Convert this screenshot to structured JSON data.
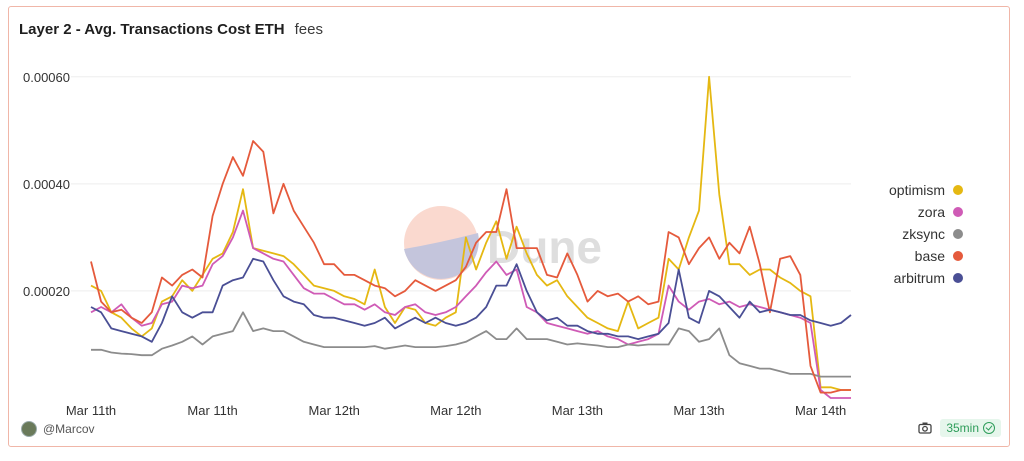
{
  "header": {
    "title": "Layer 2 - Avg. Transactions Cost ETH",
    "subtitle": "fees"
  },
  "footer": {
    "author": "@Marcov",
    "refresh": "35min"
  },
  "watermark": "Dune",
  "chart_data": {
    "type": "line",
    "ylim": [
      0,
      0.00065
    ],
    "y_ticks": [
      "0.00020",
      "0.00040",
      "0.00060"
    ],
    "y_tick_values": [
      0.0002,
      0.0004,
      0.0006
    ],
    "x_ticks": [
      "Mar 11th",
      "Mar 11th",
      "Mar 12th",
      "Mar 12th",
      "Mar 13th",
      "Mar 13th",
      "Mar 14th"
    ],
    "x_tick_positions": [
      0,
      12,
      24,
      36,
      48,
      60,
      72
    ],
    "x_max": 75,
    "legend_position": "right",
    "grid": true,
    "series": [
      {
        "name": "optimism",
        "color": "#e5b812",
        "values": [
          0.00021,
          0.0002,
          0.00016,
          0.00015,
          0.00013,
          0.000115,
          0.00013,
          0.00018,
          0.00019,
          0.00022,
          0.0002,
          0.00023,
          0.00026,
          0.00027,
          0.00031,
          0.00039,
          0.00028,
          0.000275,
          0.00027,
          0.000265,
          0.00025,
          0.00023,
          0.00021,
          0.000205,
          0.0002,
          0.00019,
          0.000185,
          0.000175,
          0.00024,
          0.00017,
          0.00014,
          0.00017,
          0.000165,
          0.00014,
          0.000135,
          0.00015,
          0.00016,
          0.0003,
          0.00024,
          0.00029,
          0.00033,
          0.00026,
          0.00032,
          0.00027,
          0.00023,
          0.00021,
          0.00022,
          0.00019,
          0.00017,
          0.00015,
          0.00014,
          0.00013,
          0.000125,
          0.00018,
          0.00013,
          0.00014,
          0.00015,
          0.00026,
          0.00024,
          0.0003,
          0.00035,
          0.0006,
          0.00038,
          0.00025,
          0.00025,
          0.00023,
          0.00024,
          0.00024,
          0.000225,
          0.000215,
          0.0002,
          0.00019,
          2e-05,
          2e-05,
          1.5e-05,
          1.5e-05
        ]
      },
      {
        "name": "zora",
        "color": "#cf5bb6",
        "values": [
          0.00016,
          0.00017,
          0.00016,
          0.000175,
          0.00015,
          0.000135,
          0.00014,
          0.000175,
          0.00018,
          0.00021,
          0.000205,
          0.00021,
          0.00025,
          0.000265,
          0.0003,
          0.00035,
          0.00028,
          0.00027,
          0.00026,
          0.000255,
          0.00023,
          0.000205,
          0.000195,
          0.000195,
          0.000185,
          0.000175,
          0.000175,
          0.000165,
          0.000175,
          0.00016,
          0.000155,
          0.00017,
          0.000175,
          0.00016,
          0.000155,
          0.00016,
          0.00017,
          0.00019,
          0.00021,
          0.000235,
          0.000255,
          0.00023,
          0.00024,
          0.00017,
          0.00016,
          0.00014,
          0.000135,
          0.00013,
          0.000125,
          0.00012,
          0.000125,
          0.000115,
          0.00011,
          0.0001,
          0.000105,
          0.00011,
          0.00012,
          0.00021,
          0.00018,
          0.000165,
          0.00018,
          0.000185,
          0.000175,
          0.00018,
          0.00017,
          0.000175,
          0.00017,
          0.000165,
          0.00016,
          0.000155,
          0.00015,
          0.00014,
          1.5e-05,
          0.0,
          0.0,
          0.0
        ]
      },
      {
        "name": "zksync",
        "color": "#8c8c8c",
        "values": [
          9e-05,
          9e-05,
          8.5e-05,
          8.3e-05,
          8.2e-05,
          8e-05,
          8e-05,
          9.2e-05,
          9.8e-05,
          0.000105,
          0.000115,
          0.0001,
          0.000115,
          0.00012,
          0.000125,
          0.00016,
          0.000125,
          0.00013,
          0.000125,
          0.000125,
          0.000115,
          0.000105,
          0.0001,
          9.5e-05,
          9.5e-05,
          9.5e-05,
          9.5e-05,
          9.5e-05,
          9.7e-05,
          9.2e-05,
          9.5e-05,
          9.8e-05,
          9.5e-05,
          9.5e-05,
          9.5e-05,
          9.7e-05,
          0.0001,
          0.000105,
          0.000115,
          0.000125,
          0.00011,
          0.00011,
          0.00013,
          0.00011,
          0.00011,
          0.00011,
          0.000105,
          0.0001,
          0.000102,
          0.0001,
          9.8e-05,
          9.5e-05,
          9.5e-05,
          0.0001,
          9.8e-05,
          0.0001,
          0.0001,
          0.0001,
          0.00013,
          0.000125,
          0.000105,
          0.00011,
          0.00013,
          8e-05,
          6.5e-05,
          6e-05,
          5.5e-05,
          5.5e-05,
          5e-05,
          4.5e-05,
          4.5e-05,
          4.5e-05,
          4e-05,
          4e-05,
          4e-05,
          4e-05
        ]
      },
      {
        "name": "base",
        "color": "#e55a3c",
        "values": [
          0.000255,
          0.00018,
          0.00016,
          0.000165,
          0.00015,
          0.00014,
          0.00016,
          0.000225,
          0.00021,
          0.00023,
          0.00024,
          0.000225,
          0.00034,
          0.0004,
          0.00045,
          0.000415,
          0.00048,
          0.00046,
          0.000345,
          0.0004,
          0.00035,
          0.00032,
          0.00029,
          0.00025,
          0.00025,
          0.00023,
          0.00023,
          0.00022,
          0.00021,
          0.000205,
          0.00019,
          0.0002,
          0.00022,
          0.00021,
          0.0002,
          0.00021,
          0.00022,
          0.000245,
          0.00029,
          0.00031,
          0.00031,
          0.00039,
          0.00028,
          0.00028,
          0.00028,
          0.00023,
          0.000225,
          0.00027,
          0.00023,
          0.00018,
          0.0002,
          0.00019,
          0.000195,
          0.00018,
          0.00019,
          0.000175,
          0.00018,
          0.00031,
          0.0003,
          0.00025,
          0.00028,
          0.0003,
          0.00026,
          0.00029,
          0.00027,
          0.00032,
          0.00025,
          0.00016,
          0.00026,
          0.000265,
          0.00023,
          6e-05,
          1e-05,
          1e-05,
          1.5e-05,
          1.5e-05
        ]
      },
      {
        "name": "arbitrum",
        "color": "#4a4f95",
        "values": [
          0.00017,
          0.00016,
          0.00013,
          0.000125,
          0.00012,
          0.000115,
          0.000105,
          0.00014,
          0.00019,
          0.00016,
          0.00015,
          0.00016,
          0.00016,
          0.00021,
          0.00022,
          0.000225,
          0.00026,
          0.000255,
          0.00022,
          0.00019,
          0.00018,
          0.000175,
          0.000155,
          0.00015,
          0.00015,
          0.000145,
          0.00014,
          0.000135,
          0.00014,
          0.00015,
          0.00013,
          0.00014,
          0.00015,
          0.00014,
          0.00015,
          0.00014,
          0.000135,
          0.00014,
          0.00015,
          0.00017,
          0.00021,
          0.00021,
          0.00025,
          0.0002,
          0.00016,
          0.000145,
          0.00015,
          0.000135,
          0.000135,
          0.000125,
          0.00012,
          0.00012,
          0.000115,
          0.000115,
          0.00011,
          0.000115,
          0.00012,
          0.00014,
          0.00024,
          0.00015,
          0.00014,
          0.0002,
          0.00019,
          0.00017,
          0.00015,
          0.00018,
          0.00016,
          0.000165,
          0.00016,
          0.000155,
          0.000155,
          0.000145,
          0.00014,
          0.000135,
          0.00014,
          0.000155
        ]
      }
    ]
  }
}
